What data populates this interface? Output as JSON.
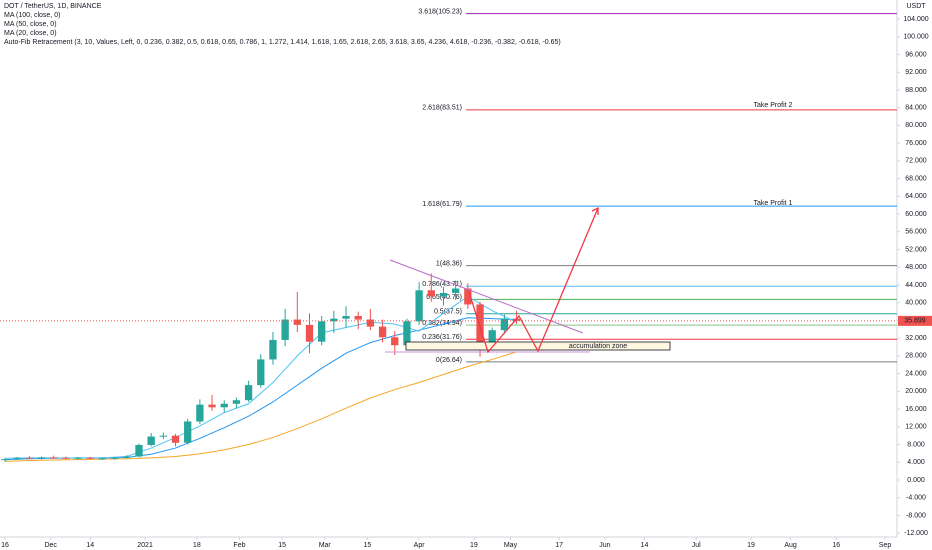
{
  "chart_data": {
    "type": "candlestick",
    "title": "DOT / TetherUS, 1D, BINANCE",
    "indicators": [
      "MA (100, close, 0)",
      "MA (50, close, 0)",
      "MA (20, close, 0)",
      "Auto-Fib Retracement (3, 10, Values, Left, 0, 0.236, 0.382, 0.5, 0.618, 0.65, 0.786, 1, 1.272, 1.414, 1.618, 1.65, 2.618, 2.65, 3.618, 3.65, 4.236, 4.618, -0.236, -0.382, -0.618, -0.65)"
    ],
    "currency": "USDT",
    "x": [
      0,
      4,
      8,
      12,
      16,
      20,
      24,
      28,
      32,
      36,
      40,
      44,
      48,
      52,
      56,
      60,
      64,
      68,
      72,
      76,
      80,
      84,
      88,
      92,
      96,
      100,
      104,
      108,
      112,
      116,
      120,
      124,
      128,
      132,
      136,
      140,
      144,
      148,
      152,
      156,
      160,
      164,
      168
    ],
    "open": [
      4.5,
      4.7,
      5.0,
      4.9,
      5.1,
      5.0,
      4.9,
      5.0,
      4.8,
      4.9,
      5.0,
      5.3,
      7.9,
      9.8,
      10.0,
      8.4,
      13.2,
      17.0,
      16.4,
      17.2,
      18.0,
      21.4,
      27.2,
      31.6,
      36.2,
      35.0,
      31.2,
      35.8,
      36.4,
      37.0,
      36.2,
      34.6,
      32.2,
      30.4,
      35.8,
      42.8,
      41.4,
      42.2,
      43.2,
      39.6,
      30.6,
      33.8,
      36.4
    ],
    "high": [
      4.9,
      5.2,
      5.4,
      5.3,
      5.5,
      5.3,
      5.2,
      5.2,
      5.1,
      5.2,
      5.6,
      8.2,
      10.6,
      10.7,
      10.4,
      13.8,
      18.2,
      19.2,
      18.0,
      18.6,
      22.4,
      28.4,
      33.4,
      38.6,
      42.4,
      37.6,
      37.0,
      38.2,
      39.2,
      38.0,
      38.6,
      36.2,
      33.6,
      36.4,
      44.6,
      46.6,
      43.6,
      45.0,
      44.4,
      40.2,
      34.4,
      37.4,
      38.2
    ],
    "low": [
      4.2,
      4.5,
      4.7,
      4.6,
      4.8,
      4.7,
      4.6,
      4.6,
      4.5,
      4.6,
      4.8,
      5.1,
      7.6,
      9.2,
      7.6,
      8.0,
      12.6,
      15.6,
      15.2,
      16.2,
      17.6,
      20.8,
      26.0,
      30.2,
      33.4,
      28.6,
      30.4,
      33.2,
      34.4,
      34.0,
      33.8,
      31.0,
      28.2,
      29.6,
      35.0,
      40.2,
      39.4,
      40.6,
      38.6,
      27.8,
      29.2,
      33.0,
      35.2
    ],
    "close": [
      4.7,
      5.0,
      4.9,
      5.1,
      5.0,
      4.9,
      5.0,
      4.8,
      4.9,
      5.0,
      5.3,
      7.9,
      9.8,
      10.0,
      8.4,
      13.2,
      17.0,
      16.4,
      17.2,
      18.0,
      21.4,
      27.2,
      31.6,
      36.2,
      35.0,
      31.2,
      35.8,
      36.4,
      37.0,
      36.2,
      34.6,
      32.2,
      30.4,
      35.8,
      42.8,
      41.4,
      42.2,
      43.2,
      39.6,
      30.6,
      33.8,
      36.4,
      35.9
    ],
    "up_color": "#26a69a",
    "down_color": "#ef5350",
    "ma_x": [
      0,
      8,
      16,
      24,
      32,
      40,
      48,
      56,
      64,
      72,
      80,
      88,
      96,
      104,
      112,
      120,
      128,
      136,
      144,
      152,
      160,
      168
    ],
    "moving_averages": [
      {
        "color": "#f5a623",
        "values": [
          4.2,
          4.4,
          4.5,
          4.6,
          4.7,
          4.8,
          5.0,
          5.3,
          5.9,
          6.8,
          8.0,
          9.6,
          11.6,
          13.8,
          16.2,
          18.5,
          20.4,
          22.0,
          23.8,
          25.6,
          27.2,
          28.9
        ]
      },
      {
        "color": "#2196f3",
        "values": [
          4.6,
          4.8,
          4.9,
          5.0,
          5.0,
          5.1,
          5.8,
          7.2,
          9.4,
          11.8,
          14.4,
          17.6,
          21.4,
          25.2,
          28.6,
          31.0,
          32.6,
          33.8,
          35.2,
          36.6,
          36.4,
          36.2
        ]
      },
      {
        "color": "#4fc3f7",
        "values": [
          4.9,
          5.0,
          5.0,
          5.0,
          5.0,
          5.3,
          7.2,
          9.6,
          12.2,
          15.2,
          17.2,
          22.0,
          28.0,
          33.2,
          34.4,
          35.6,
          35.2,
          33.6,
          37.6,
          41.4,
          38.2,
          35.6
        ]
      }
    ],
    "fib_levels": [
      {
        "value": 105.23,
        "label": "3.618(105.23)",
        "color": "#9c27b0"
      },
      {
        "value": 83.51,
        "label": "2.618(83.51)",
        "color": "#f23645"
      },
      {
        "value": 61.79,
        "label": "1.618(61.79)",
        "color": "#2196f3"
      },
      {
        "value": 48.36,
        "label": "1(48.36)",
        "color": "#787b86"
      },
      {
        "value": 43.71,
        "label": "0.786(43.71)",
        "color": "#64b5f6"
      },
      {
        "value": 40.76,
        "label": "0.65(40.76)",
        "color": "#4caf50"
      },
      {
        "value": 37.5,
        "label": "0.5(37.5)",
        "color": "#26a69a"
      },
      {
        "value": 34.94,
        "label": "0.382(34.94)",
        "color": "#81c784"
      },
      {
        "value": 31.76,
        "label": "0.236(31.76)",
        "color": "#f23645"
      },
      {
        "value": 26.64,
        "label": "0(26.64)",
        "color": "#787b86"
      }
    ],
    "annotations": [
      "Take Profit 2",
      "Take Profit 1",
      "accumulation zone"
    ],
    "last_price": 35.899,
    "xlim": [
      -1.64,
      292.94
    ],
    "ylim": [
      -12.86,
      108.29
    ],
    "xticks": [
      {
        "value": 0,
        "label": "16"
      },
      {
        "value": 15,
        "label": "Dec"
      },
      {
        "value": 28,
        "label": "14"
      },
      {
        "value": 46,
        "label": "2021"
      },
      {
        "value": 63,
        "label": "18"
      },
      {
        "value": 77,
        "label": "Feb"
      },
      {
        "value": 91,
        "label": "15"
      },
      {
        "value": 105,
        "label": "Mar"
      },
      {
        "value": 119,
        "label": "15"
      },
      {
        "value": 136,
        "label": "Apr"
      },
      {
        "value": 154,
        "label": "19"
      },
      {
        "value": 166,
        "label": "May"
      },
      {
        "value": 182,
        "label": "17"
      },
      {
        "value": 197,
        "label": "Jun"
      },
      {
        "value": 210,
        "label": "14"
      },
      {
        "value": 227,
        "label": "Jul"
      },
      {
        "value": 245,
        "label": "19"
      },
      {
        "value": 258,
        "label": "Aug"
      },
      {
        "value": 273,
        "label": "16"
      },
      {
        "value": 289,
        "label": "Sep"
      }
    ],
    "yticks": [
      {
        "value": -12,
        "label": "-12.000"
      },
      {
        "value": -8,
        "label": "-8.000"
      },
      {
        "value": -4,
        "label": "-4.000"
      },
      {
        "value": 0,
        "label": "0.000"
      },
      {
        "value": 4,
        "label": "4.000"
      },
      {
        "value": 8,
        "label": "8.000"
      },
      {
        "value": 12,
        "label": "12.000"
      },
      {
        "value": 16,
        "label": "16.000"
      },
      {
        "value": 20,
        "label": "20.000"
      },
      {
        "value": 24,
        "label": "24.000"
      },
      {
        "value": 28,
        "label": "28.000"
      },
      {
        "value": 32,
        "label": "32.000"
      },
      {
        "value": 36,
        "label": "36.000"
      },
      {
        "value": 40,
        "label": "40.000"
      },
      {
        "value": 44,
        "label": "44.000"
      },
      {
        "value": 48,
        "label": "48.000"
      },
      {
        "value": 52,
        "label": "52.000"
      },
      {
        "value": 56,
        "label": "56.000"
      },
      {
        "value": 60,
        "label": "60.000"
      },
      {
        "value": 64,
        "label": "64.000"
      },
      {
        "value": 68,
        "label": "68.000"
      },
      {
        "value": 72,
        "label": "72.000"
      },
      {
        "value": 76,
        "label": "76.000"
      },
      {
        "value": 80,
        "label": "80.000"
      },
      {
        "value": 84,
        "label": "84.000"
      },
      {
        "value": 88,
        "label": "88.000"
      },
      {
        "value": 92,
        "label": "92.000"
      },
      {
        "value": 96,
        "label": "96.000"
      },
      {
        "value": 100,
        "label": "100.000"
      },
      {
        "value": 104,
        "label": "104.000"
      }
    ]
  }
}
